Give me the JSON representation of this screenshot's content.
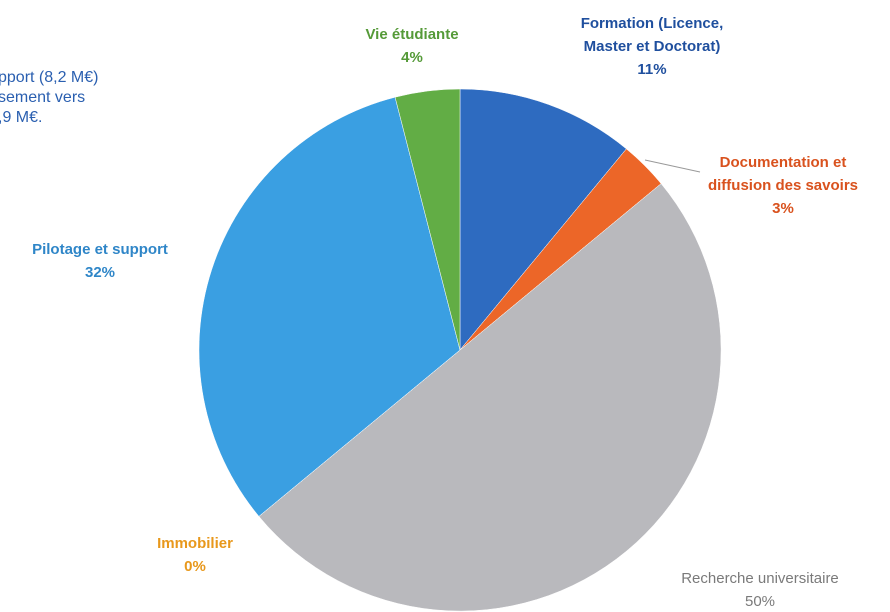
{
  "chart_data": {
    "type": "pie",
    "annotation": [
      "pport (8,2 M€)",
      "sement vers",
      ",9 M€."
    ],
    "categories": [
      "Formation (Licence, Master et Doctorat)",
      "Documentation et diffusion des savoirs",
      "Recherche universitaire",
      "Immobilier",
      "Pilotage et support",
      "Vie étudiante"
    ],
    "values": [
      11,
      3,
      50,
      0,
      32,
      4
    ],
    "value_labels": [
      "11%",
      "3%",
      "50%",
      "0%",
      "32%",
      "4%"
    ],
    "colors": [
      "#2e6bc0",
      "#ec6628",
      "#b9b9bd",
      "#f0a030",
      "#3a9fe2",
      "#62ad45"
    ],
    "label_colors": [
      "#1f4f9e",
      "#d9521e",
      "#7a7a7a",
      "#e8981c",
      "#2f86c8",
      "#559a38"
    ]
  }
}
